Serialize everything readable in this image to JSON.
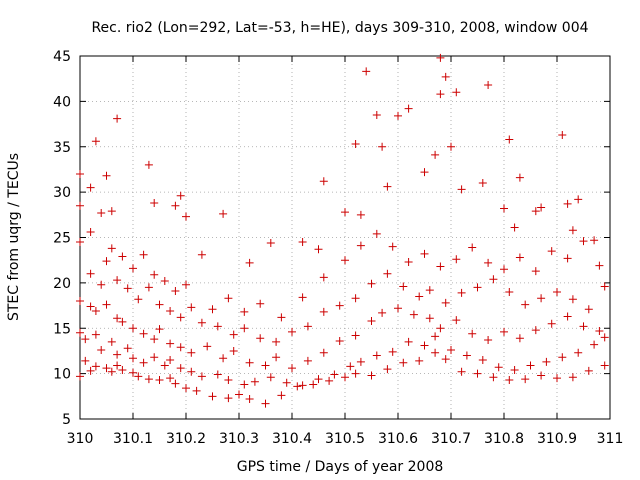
{
  "chart_data": {
    "type": "scatter",
    "title": "Rec. rio2 (Lon=292, Lat=-53, h=HE), days 309-310, 2008, window 004",
    "xlabel": "GPS time / Days of year 2008",
    "ylabel": "STEC from uqrg / TECUs",
    "xlim": [
      310,
      311
    ],
    "ylim": [
      5,
      45
    ],
    "x_ticks": [
      "310",
      "310.1",
      "310.2",
      "310.3",
      "310.4",
      "310.5",
      "310.6",
      "310.7",
      "310.8",
      "310.9",
      "311"
    ],
    "y_ticks": [
      "5",
      "10",
      "15",
      "20",
      "25",
      "30",
      "35",
      "40",
      "45"
    ],
    "grid": true,
    "legend": "none",
    "marker": "plus",
    "color": "#cc0000",
    "series": [
      {
        "x": [
          310.0,
          310.01,
          310.02,
          310.03,
          310.05,
          310.06,
          310.07,
          310.08,
          310.1,
          310.11,
          310.13,
          310.15,
          310.17,
          310.18,
          310.2,
          310.22,
          310.25,
          310.28,
          310.3,
          310.32,
          310.35,
          310.38,
          310.41,
          310.44,
          310.47,
          310.5,
          310.52,
          310.55,
          310.58,
          310.61,
          310.64,
          310.67,
          310.69,
          310.72,
          310.75,
          310.78,
          310.81,
          310.84,
          310.87,
          310.9,
          310.93,
          310.96,
          310.99
        ],
        "y": [
          9.7,
          11.4,
          10.3,
          10.8,
          10.6,
          10.2,
          10.9,
          10.4,
          10.1,
          9.7,
          9.4,
          9.3,
          9.5,
          8.9,
          8.4,
          8.1,
          7.5,
          7.3,
          7.7,
          7.2,
          6.7,
          7.6,
          8.6,
          8.8,
          9.2,
          9.6,
          10.0,
          9.8,
          10.5,
          11.2,
          11.4,
          12.3,
          11.6,
          10.2,
          10.0,
          9.6,
          9.3,
          9.4,
          9.8,
          9.5,
          9.6,
          10.3,
          10.9
        ]
      },
      {
        "x": [
          310.0,
          310.01,
          310.03,
          310.04,
          310.06,
          310.07,
          310.09,
          310.1,
          310.12,
          310.14,
          310.16,
          310.17,
          310.19,
          310.21,
          310.23,
          310.26,
          310.28,
          310.31,
          310.33,
          310.36,
          310.39,
          310.42,
          310.45,
          310.48,
          310.51,
          310.53,
          310.56,
          310.59,
          310.62,
          310.65,
          310.67,
          310.7,
          310.73,
          310.76,
          310.79,
          310.82,
          310.85,
          310.88,
          310.91,
          310.94,
          310.97,
          310.99
        ],
        "y": [
          14.5,
          13.8,
          14.3,
          12.6,
          13.5,
          12.1,
          12.8,
          11.7,
          11.2,
          11.8,
          10.9,
          11.5,
          10.6,
          10.2,
          9.7,
          9.9,
          9.3,
          8.8,
          9.1,
          9.6,
          9.0,
          8.7,
          9.4,
          9.9,
          10.8,
          11.3,
          12.0,
          12.4,
          13.5,
          13.1,
          14.1,
          12.6,
          12.0,
          11.5,
          10.7,
          10.4,
          10.9,
          11.3,
          11.8,
          12.3,
          13.2,
          14.0
        ]
      },
      {
        "x": [
          310.0,
          310.02,
          310.03,
          310.05,
          310.07,
          310.08,
          310.1,
          310.12,
          310.14,
          310.15,
          310.17,
          310.19,
          310.21,
          310.24,
          310.27,
          310.29,
          310.32,
          310.35,
          310.37,
          310.4,
          310.43,
          310.46,
          310.49,
          310.52,
          310.55,
          310.57,
          310.6,
          310.63,
          310.66,
          310.68,
          310.71,
          310.74,
          310.77,
          310.8,
          310.83,
          310.86,
          310.89,
          310.92,
          310.95,
          310.98
        ],
        "y": [
          18.0,
          17.4,
          16.9,
          17.6,
          16.1,
          15.7,
          15.0,
          14.4,
          13.8,
          14.9,
          13.3,
          12.9,
          12.3,
          13.0,
          11.7,
          12.5,
          11.2,
          10.9,
          11.8,
          10.6,
          11.4,
          12.3,
          13.6,
          14.2,
          15.8,
          16.7,
          17.2,
          16.5,
          16.1,
          15.0,
          15.9,
          14.4,
          13.7,
          14.6,
          13.9,
          14.8,
          15.5,
          16.3,
          15.2,
          14.7
        ]
      },
      {
        "x": [
          310.0,
          310.02,
          310.04,
          310.05,
          310.07,
          310.09,
          310.11,
          310.13,
          310.15,
          310.17,
          310.19,
          310.21,
          310.23,
          310.26,
          310.29,
          310.31,
          310.34,
          310.37,
          310.4,
          310.43,
          310.46,
          310.49,
          310.52,
          310.55,
          310.58,
          310.61,
          310.64,
          310.66,
          310.69,
          310.72,
          310.75,
          310.78,
          310.81,
          310.84,
          310.87,
          310.9,
          310.93,
          310.96,
          310.99
        ],
        "y": [
          24.5,
          21.0,
          19.8,
          22.4,
          20.3,
          19.4,
          18.2,
          19.5,
          17.6,
          16.9,
          16.2,
          17.3,
          15.6,
          15.2,
          14.3,
          15.0,
          13.9,
          13.5,
          14.6,
          15.2,
          16.8,
          17.5,
          18.3,
          19.9,
          21.0,
          19.6,
          18.5,
          19.2,
          17.8,
          18.9,
          19.5,
          20.4,
          19.0,
          17.6,
          18.3,
          19.0,
          18.2,
          17.1,
          19.6
        ]
      },
      {
        "x": [
          310.0,
          310.02,
          310.04,
          310.06,
          310.08,
          310.1,
          310.12,
          310.14,
          310.16,
          310.18,
          310.2,
          310.25,
          310.28,
          310.31,
          310.34,
          310.38,
          310.42,
          310.46,
          310.5,
          310.53,
          310.56,
          310.59,
          310.62,
          310.65,
          310.68,
          310.71,
          310.74,
          310.77,
          310.8,
          310.83,
          310.86,
          310.89,
          310.92,
          310.95,
          310.98
        ],
        "y": [
          28.5,
          25.6,
          27.7,
          23.8,
          22.9,
          21.6,
          23.1,
          20.9,
          20.2,
          19.1,
          19.8,
          17.1,
          18.3,
          16.8,
          17.7,
          16.2,
          18.4,
          20.6,
          22.5,
          24.1,
          25.4,
          24.0,
          22.3,
          23.2,
          21.8,
          22.6,
          23.9,
          22.2,
          21.5,
          22.8,
          21.3,
          23.5,
          22.7,
          24.6,
          21.9
        ]
      },
      {
        "x": [
          310.0,
          310.02,
          310.03,
          310.05,
          310.06,
          310.07,
          310.13,
          310.14,
          310.18,
          310.19,
          310.2,
          310.23,
          310.27,
          310.32,
          310.36,
          310.42,
          310.45,
          310.46,
          310.5,
          310.52,
          310.53,
          310.54,
          310.56,
          310.57,
          310.58,
          310.6,
          310.62,
          310.65,
          310.67,
          310.68,
          310.68,
          310.69,
          310.7,
          310.71,
          310.72,
          310.76,
          310.77,
          310.8,
          310.81,
          310.82,
          310.83,
          310.86,
          310.87,
          310.91,
          310.92,
          310.93,
          310.94,
          310.97
        ],
        "y": [
          32.0,
          30.5,
          35.6,
          31.8,
          27.9,
          38.1,
          33.0,
          28.8,
          28.5,
          29.6,
          27.3,
          23.1,
          27.6,
          22.2,
          24.4,
          24.5,
          23.7,
          31.2,
          27.8,
          35.3,
          27.5,
          43.3,
          38.5,
          35.0,
          30.6,
          38.4,
          39.2,
          32.2,
          34.1,
          40.8,
          44.8,
          42.7,
          35.0,
          41.0,
          30.3,
          31.0,
          41.8,
          28.2,
          35.8,
          26.1,
          31.6,
          27.9,
          28.3,
          36.3,
          28.7,
          25.8,
          29.2,
          24.7
        ]
      }
    ]
  }
}
